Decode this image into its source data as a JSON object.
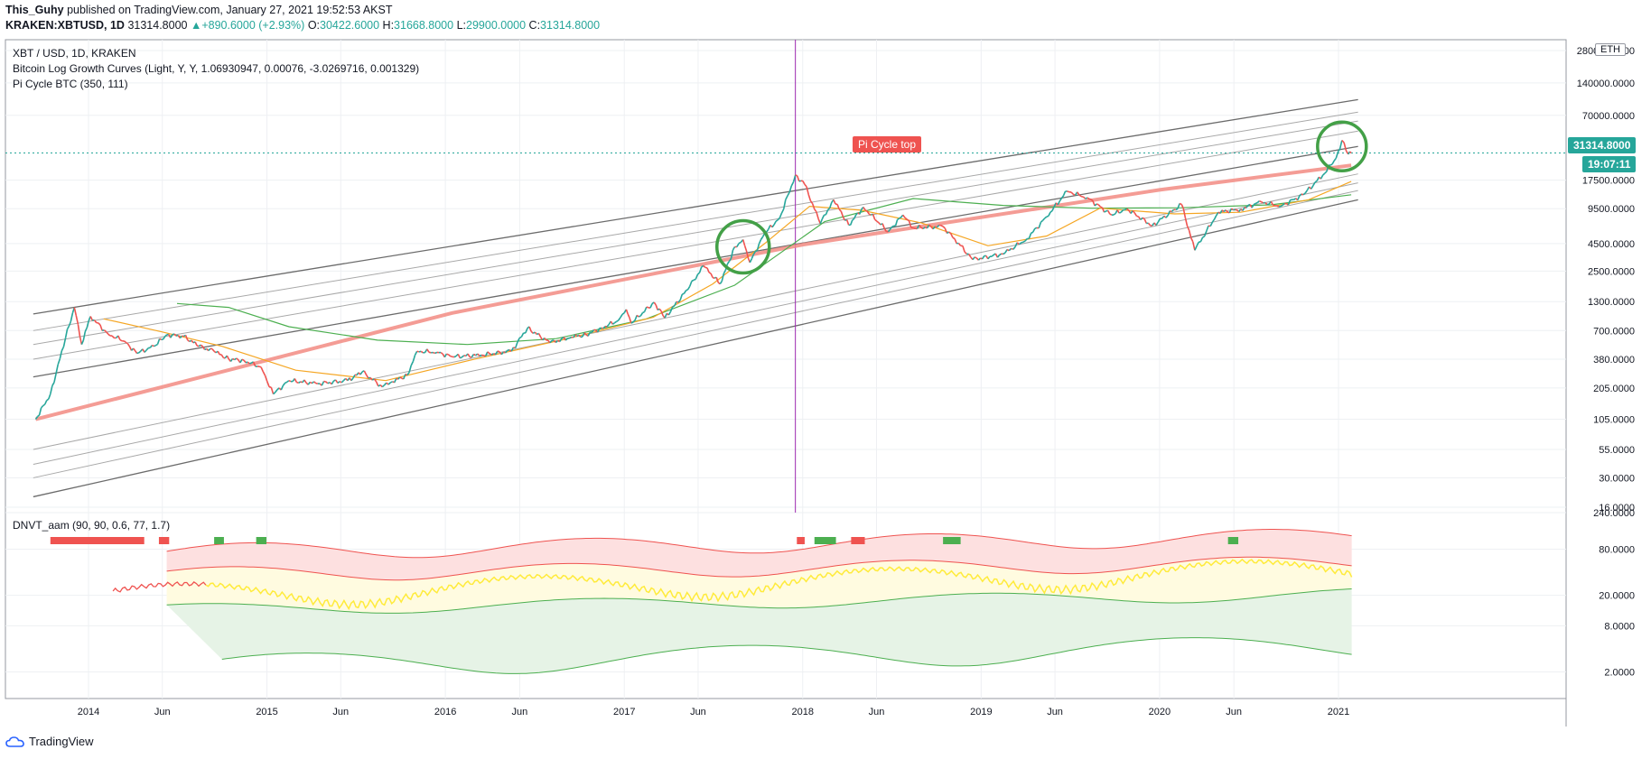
{
  "header": {
    "author": "This_Guhy",
    "published_text": " published on TradingView.com, January 27, 2021 19:52:53 AKST",
    "symbol": "KRAKEN:XBTUSD, 1D",
    "price": "31314.8000",
    "change_arrow": "▲",
    "change": "+890.6000 (+2.93%)",
    "o_label": "O:",
    "o_value": "30422.6000",
    "h_label": "H:",
    "h_value": "31668.8000",
    "l_label": "L:",
    "l_value": "29900.0000",
    "c_label": "C:",
    "c_value": "31314.8000"
  },
  "legend": {
    "line1": "XBT / USD, 1D, KRAKEN",
    "line2": "Bitcoin Log Growth Curves (Light, Y, Y, 1.06930947, 0.00076, -3.0269716, 0.001329)",
    "line3": "Pi Cycle BTC (350, 111)",
    "indicator": "DNVT_aam (90, 90, 0.6, 77, 1.7)",
    "eth_badge": "ETH"
  },
  "annotations": {
    "pi_cycle_label": "Pi Cycle top",
    "last_price": "31314.8000",
    "countdown": "19:07:11"
  },
  "footer": {
    "brand": "TradingView"
  },
  "colors": {
    "up": "#26a69a",
    "down": "#ef5350",
    "regression": "#f28b82",
    "pi_line_green": "#4caf50",
    "pi_line_orange": "#f5a623",
    "highlight_circle": "#43a047",
    "vertical_marker": "#9c27b0",
    "band_red": "#ef5350",
    "band_green": "#4caf50",
    "oscillator": "#ffeb3b"
  },
  "chart_data": [
    {
      "type": "line",
      "title": "XBT / USD, 1D, KRAKEN",
      "scale": "log",
      "x_ticks": [
        "2014",
        "Jun",
        "2015",
        "Jun",
        "2016",
        "Jun",
        "2017",
        "Jun",
        "2018",
        "Jun",
        "2019",
        "Jun",
        "2020",
        "Jun",
        "2021"
      ],
      "y_ticks": [
        "280000.0000",
        "140000.0000",
        "70000.0000",
        "17500.0000",
        "9500.0000",
        "4500.0000",
        "2500.0000",
        "1300.0000",
        "700.0000",
        "380.0000",
        "205.0000",
        "105.0000",
        "55.0000",
        "30.0000",
        "16.0000"
      ],
      "ylim": [
        16,
        280000
      ],
      "series": [
        {
          "values": [
            [
              "2013-09-15",
              105
            ],
            [
              "2013-10-15",
              180
            ],
            [
              "2013-11-15",
              600
            ],
            [
              "2013-12-03",
              1150
            ],
            [
              "2013-12-18",
              520
            ],
            [
              "2014-01-05",
              950
            ],
            [
              "2014-02-10",
              650
            ],
            [
              "2014-03-15",
              560
            ],
            [
              "2014-04-10",
              430
            ],
            [
              "2014-05-15",
              500
            ],
            [
              "2014-06-10",
              640
            ],
            [
              "2014-07-15",
              620
            ],
            [
              "2014-08-15",
              500
            ],
            [
              "2014-09-15",
              450
            ],
            [
              "2014-10-15",
              380
            ],
            [
              "2014-11-15",
              370
            ],
            [
              "2014-12-20",
              320
            ],
            [
              "2015-01-14",
              180
            ],
            [
              "2015-02-15",
              240
            ],
            [
              "2015-04-15",
              225
            ],
            [
              "2015-06-15",
              240
            ],
            [
              "2015-07-15",
              290
            ],
            [
              "2015-08-25",
              210
            ],
            [
              "2015-09-15",
              235
            ],
            [
              "2015-10-15",
              270
            ],
            [
              "2015-11-04",
              450
            ],
            [
              "2015-12-15",
              440
            ],
            [
              "2016-01-15",
              400
            ],
            [
              "2016-03-15",
              415
            ],
            [
              "2016-05-15",
              450
            ],
            [
              "2016-06-17",
              740
            ],
            [
              "2016-08-02",
              540
            ],
            [
              "2016-09-15",
              610
            ],
            [
              "2016-10-15",
              640
            ],
            [
              "2016-11-15",
              740
            ],
            [
              "2016-12-20",
              870
            ],
            [
              "2017-01-05",
              1100
            ],
            [
              "2017-01-15",
              820
            ],
            [
              "2017-03-03",
              1280
            ],
            [
              "2017-03-25",
              920
            ],
            [
              "2017-05-15",
              1800
            ],
            [
              "2017-06-12",
              2800
            ],
            [
              "2017-07-16",
              1900
            ],
            [
              "2017-08-15",
              4200
            ],
            [
              "2017-09-01",
              4900
            ],
            [
              "2017-09-15",
              3000
            ],
            [
              "2017-10-15",
              5600
            ],
            [
              "2017-11-15",
              7800
            ],
            [
              "2017-12-17",
              19500
            ],
            [
              "2018-01-05",
              16000
            ],
            [
              "2018-02-06",
              6900
            ],
            [
              "2018-03-05",
              11500
            ],
            [
              "2018-04-05",
              6700
            ],
            [
              "2018-05-05",
              9800
            ],
            [
              "2018-06-25",
              5800
            ],
            [
              "2018-07-25",
              8300
            ],
            [
              "2018-08-15",
              6300
            ],
            [
              "2018-10-15",
              6500
            ],
            [
              "2018-11-20",
              4300
            ],
            [
              "2018-12-15",
              3200
            ],
            [
              "2019-02-15",
              3600
            ],
            [
              "2019-04-05",
              5000
            ],
            [
              "2019-05-15",
              8000
            ],
            [
              "2019-06-26",
              13800
            ],
            [
              "2019-08-06",
              12000
            ],
            [
              "2019-09-25",
              8300
            ],
            [
              "2019-10-26",
              9500
            ],
            [
              "2019-12-17",
              6600
            ],
            [
              "2020-02-15",
              10400
            ],
            [
              "2020-03-13",
              3900
            ],
            [
              "2020-04-30",
              8800
            ],
            [
              "2020-06-15",
              9400
            ],
            [
              "2020-07-27",
              11000
            ],
            [
              "2020-09-05",
              10000
            ],
            [
              "2020-10-21",
              12800
            ],
            [
              "2020-11-30",
              19500
            ],
            [
              "2020-12-27",
              28000
            ],
            [
              "2021-01-08",
              41000
            ],
            [
              "2021-01-21",
              30500
            ],
            [
              "2021-01-27",
              31314.8
            ]
          ]
        },
        {
          "values": [
            [
              "2013-09-15",
              105
            ],
            [
              "2016-01-15",
              1020
            ],
            [
              "2018-01-01",
              4400
            ],
            [
              "2020-01-01",
              14200
            ],
            [
              "2021-01-27",
              24000
            ]
          ]
        },
        {
          "values": [
            [
              "2014-07-01",
              1250
            ],
            [
              "2014-10-15",
              1150
            ],
            [
              "2015-02-15",
              760
            ],
            [
              "2015-08-15",
              570
            ],
            [
              "2016-02-15",
              520
            ],
            [
              "2016-08-15",
              590
            ],
            [
              "2017-02-15",
              900
            ],
            [
              "2017-08-15",
              1850
            ],
            [
              "2018-02-15",
              7200
            ],
            [
              "2018-08-15",
              11800
            ],
            [
              "2019-02-15",
              10200
            ],
            [
              "2019-08-15",
              9600
            ],
            [
              "2020-02-15",
              9700
            ],
            [
              "2020-08-15",
              10300
            ],
            [
              "2021-01-27",
              12800
            ]
          ]
        },
        {
          "values": [
            [
              "2014-02-01",
              900
            ],
            [
              "2014-06-01",
              680
            ],
            [
              "2014-10-01",
              500
            ],
            [
              "2015-03-01",
              300
            ],
            [
              "2015-09-01",
              240
            ],
            [
              "2016-03-01",
              380
            ],
            [
              "2016-09-01",
              580
            ],
            [
              "2017-03-01",
              930
            ],
            [
              "2017-07-01",
              1900
            ],
            [
              "2017-10-15",
              4500
            ],
            [
              "2018-01-15",
              10000
            ],
            [
              "2018-05-01",
              9200
            ],
            [
              "2018-09-01",
              7000
            ],
            [
              "2019-01-15",
              4300
            ],
            [
              "2019-05-15",
              5300
            ],
            [
              "2019-09-01",
              9600
            ],
            [
              "2020-02-01",
              8500
            ],
            [
              "2020-06-15",
              8800
            ],
            [
              "2020-11-01",
              11500
            ],
            [
              "2021-01-27",
              17000
            ]
          ]
        }
      ]
    },
    {
      "type": "line",
      "title": "DNVT_aam (90, 90, 0.6, 77, 1.7)",
      "scale": "log",
      "y_ticks": [
        "240.0000",
        "80.0000",
        "20.0000",
        "8.0000",
        "2.0000"
      ],
      "ylim": [
        1,
        240
      ]
    }
  ]
}
